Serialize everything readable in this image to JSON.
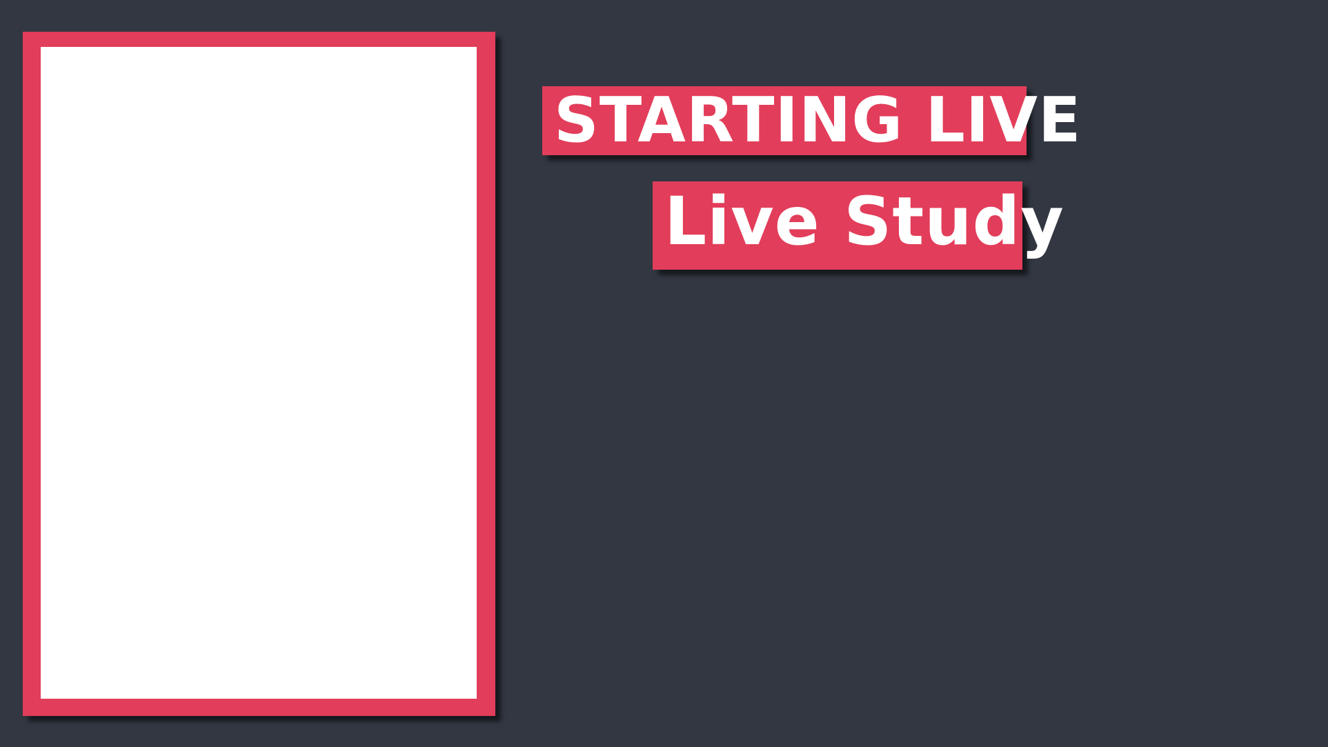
{
  "overlay": {
    "title": "STARTING LIVE",
    "subtitle": "Live Study"
  },
  "colors": {
    "background": "#323742",
    "accent": "#e23d5a",
    "camera_slot": "#ffffff",
    "text": "#ffffff"
  }
}
